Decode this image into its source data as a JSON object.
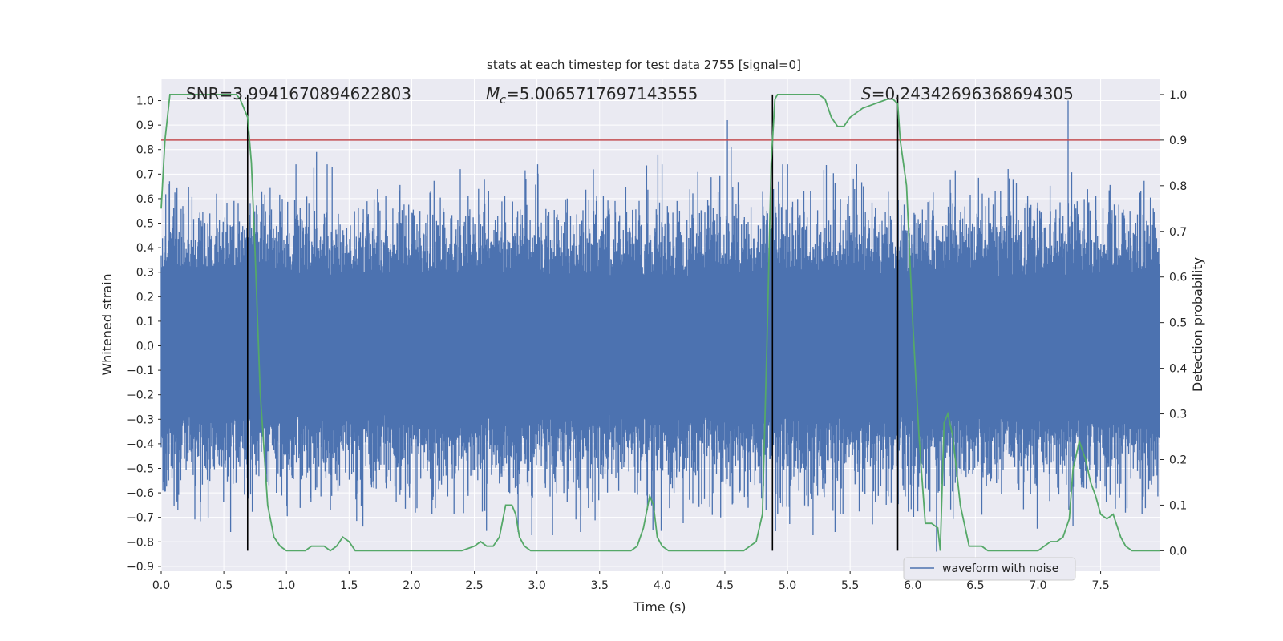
{
  "chart_data": {
    "type": "line",
    "title": "stats at each timestep for test data 2755 [signal=0]",
    "xlabel": "Time (s)",
    "ylabel_left": "Whitened strain",
    "ylabel_right": "Detection probability",
    "xlim": [
      0.0,
      7.97
    ],
    "ylim_left": [
      -0.92,
      1.09
    ],
    "ylim_right": [
      -0.045,
      1.035
    ],
    "x_ticks": [
      "0.0",
      "0.5",
      "1.0",
      "1.5",
      "2.0",
      "2.5",
      "3.0",
      "3.5",
      "4.0",
      "4.5",
      "5.0",
      "5.5",
      "6.0",
      "6.5",
      "7.0",
      "7.5"
    ],
    "y_ticks_left": [
      "1.0",
      "0.9",
      "0.8",
      "0.7",
      "0.6",
      "0.5",
      "0.4",
      "0.3",
      "0.2",
      "0.1",
      "0.0",
      "−0.1",
      "−0.2",
      "−0.3",
      "−0.4",
      "−0.5",
      "−0.6",
      "−0.7",
      "−0.8",
      "−0.9"
    ],
    "y_ticks_right": [
      "1.0",
      "0.9",
      "0.8",
      "0.7",
      "0.6",
      "0.5",
      "0.4",
      "0.3",
      "0.2",
      "0.1",
      "0.0"
    ],
    "annotations": {
      "snr": "SNR=3.9941670894622803",
      "mc_symbol": "M",
      "mc_sub": "c",
      "mc_value": "=5.0065717697143555",
      "s_symbol": "S",
      "s_value": "=0.24342696368694305"
    },
    "legend": "waveform with noise",
    "threshold": 0.9,
    "vertical_lines": [
      0.69,
      4.88,
      5.88
    ],
    "series": [
      {
        "name": "waveform with noise",
        "color": "#4c72b0",
        "noise": {
          "seed": 2755,
          "samples": 2400,
          "core_amplitude": 0.28,
          "max_positive": 1.0,
          "min_negative": -0.84
        },
        "peaks": [
          {
            "t": 4.52,
            "v": 0.92
          },
          {
            "t": 4.55,
            "v": 0.81
          },
          {
            "t": 7.24,
            "v": 1.0
          },
          {
            "t": 1.24,
            "v": 0.79
          },
          {
            "t": 6.19,
            "v": -0.84
          }
        ]
      },
      {
        "name": "detection probability",
        "color": "#55a868",
        "x": [
          0.0,
          0.03,
          0.07,
          0.12,
          0.2,
          0.3,
          0.4,
          0.5,
          0.6,
          0.63,
          0.69,
          0.72,
          0.75,
          0.79,
          0.85,
          0.9,
          0.95,
          1.0,
          1.05,
          1.1,
          1.15,
          1.2,
          1.25,
          1.3,
          1.35,
          1.4,
          1.45,
          1.5,
          1.55,
          1.6,
          1.7,
          1.8,
          1.9,
          2.0,
          2.1,
          2.2,
          2.3,
          2.4,
          2.5,
          2.55,
          2.6,
          2.65,
          2.7,
          2.75,
          2.8,
          2.83,
          2.86,
          2.9,
          2.95,
          3.0,
          3.1,
          3.2,
          3.3,
          3.4,
          3.5,
          3.6,
          3.7,
          3.75,
          3.8,
          3.85,
          3.9,
          3.93,
          3.96,
          4.0,
          4.05,
          4.1,
          4.2,
          4.3,
          4.4,
          4.5,
          4.6,
          4.65,
          4.7,
          4.75,
          4.8,
          4.84,
          4.87,
          4.9,
          4.92,
          4.95,
          5.0,
          5.05,
          5.1,
          5.2,
          5.25,
          5.3,
          5.35,
          5.4,
          5.45,
          5.5,
          5.55,
          5.6,
          5.7,
          5.8,
          5.84,
          5.88,
          5.9,
          5.95,
          6.0,
          6.05,
          6.1,
          6.15,
          6.2,
          6.22,
          6.25,
          6.28,
          6.32,
          6.38,
          6.45,
          6.5,
          6.55,
          6.6,
          6.7,
          6.8,
          6.9,
          7.0,
          7.05,
          7.1,
          7.15,
          7.2,
          7.25,
          7.28,
          7.33,
          7.38,
          7.42,
          7.46,
          7.5,
          7.55,
          7.6,
          7.66,
          7.7,
          7.75,
          7.8,
          7.85,
          7.97
        ],
        "y": [
          0.75,
          0.9,
          1.0,
          1.0,
          1.0,
          1.0,
          1.0,
          1.0,
          1.0,
          0.99,
          0.95,
          0.85,
          0.65,
          0.35,
          0.1,
          0.03,
          0.01,
          0.0,
          0.0,
          0.0,
          0.0,
          0.01,
          0.01,
          0.01,
          0.0,
          0.01,
          0.03,
          0.02,
          0.0,
          0.0,
          0.0,
          0.0,
          0.0,
          0.0,
          0.0,
          0.0,
          0.0,
          0.0,
          0.01,
          0.02,
          0.01,
          0.01,
          0.03,
          0.1,
          0.1,
          0.08,
          0.03,
          0.01,
          0.0,
          0.0,
          0.0,
          0.0,
          0.0,
          0.0,
          0.0,
          0.0,
          0.0,
          0.0,
          0.01,
          0.05,
          0.12,
          0.1,
          0.03,
          0.01,
          0.0,
          0.0,
          0.0,
          0.0,
          0.0,
          0.0,
          0.0,
          0.0,
          0.01,
          0.02,
          0.08,
          0.5,
          0.85,
          0.99,
          1.0,
          1.0,
          1.0,
          1.0,
          1.0,
          1.0,
          1.0,
          0.99,
          0.95,
          0.93,
          0.93,
          0.95,
          0.96,
          0.97,
          0.98,
          0.99,
          0.99,
          0.98,
          0.9,
          0.8,
          0.5,
          0.25,
          0.06,
          0.06,
          0.05,
          0.0,
          0.28,
          0.3,
          0.25,
          0.1,
          0.01,
          0.01,
          0.01,
          0.0,
          0.0,
          0.0,
          0.0,
          0.0,
          0.01,
          0.02,
          0.02,
          0.03,
          0.07,
          0.18,
          0.24,
          0.2,
          0.15,
          0.12,
          0.08,
          0.07,
          0.08,
          0.03,
          0.01,
          0.0,
          0.0,
          0.0,
          0.0
        ]
      }
    ],
    "colors": {
      "axes_bg": "#eaeaf2",
      "grid": "#ffffff",
      "threshold": "#c44e52",
      "vline": "#000000",
      "text": "#262626"
    }
  }
}
